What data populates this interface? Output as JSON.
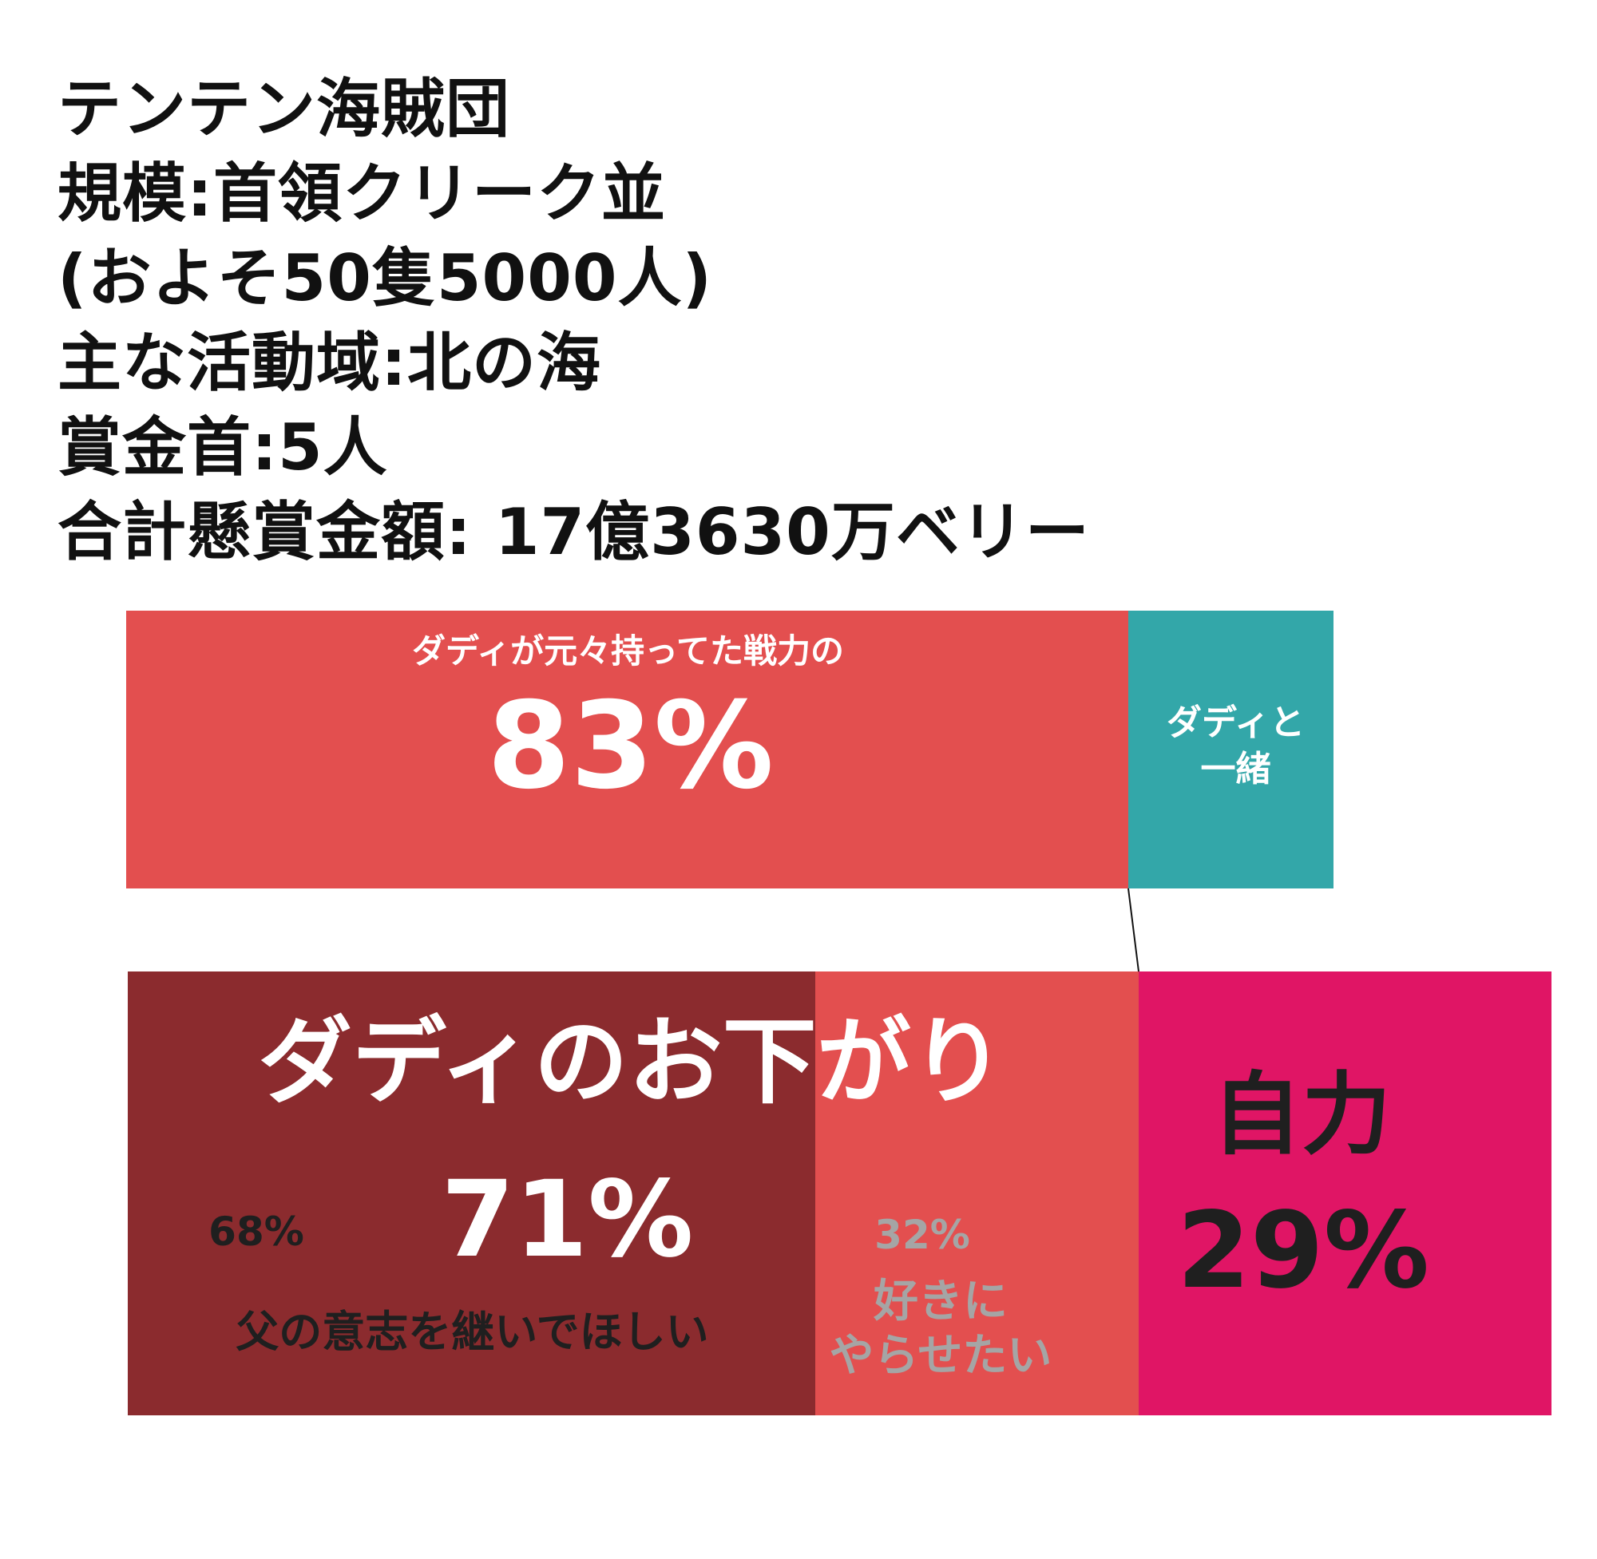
{
  "info": {
    "lines": [
      "テンテン海賊団",
      "規模:首領クリーク並",
      "(およそ50隻5000人)",
      "主な活動域:北の海",
      "賞金首:5人",
      "合計懸賞金額: 17億3630万ベリー"
    ]
  },
  "chart_data": [
    {
      "type": "bar",
      "orientation": "horizontal-stacked",
      "segments": [
        {
          "label": "ダディが元々持ってた戦力の",
          "value": 83,
          "value_text": "83%",
          "color": "#e34f4f"
        },
        {
          "label": "ダディと一緒",
          "label_lines": [
            "ダディと",
            "一緒"
          ],
          "value": 17,
          "color": "#33a7a9"
        }
      ]
    },
    {
      "type": "bar",
      "orientation": "horizontal-stacked",
      "segments": [
        {
          "label": "ダディのお下がり",
          "value": 71,
          "value_text": "71%",
          "subsegments": [
            {
              "label": "父の意志を継いでほしい",
              "value": 68,
              "value_text": "68%",
              "color": "#8b2b2e"
            },
            {
              "label": "好きにやらせたい",
              "label_lines": [
                "好きに",
                "やらせたい"
              ],
              "value": 32,
              "value_text": "32%",
              "color": "#e34f4f"
            }
          ]
        },
        {
          "label": "自力",
          "value": 29,
          "value_text": "29%",
          "color": "#e01565"
        }
      ]
    }
  ],
  "colors": {
    "title_text": "#111111",
    "label_white": "#ffffff",
    "label_dark": "#1f1f1f",
    "label_grey": "#a5a5a5",
    "connector": "#111111"
  }
}
